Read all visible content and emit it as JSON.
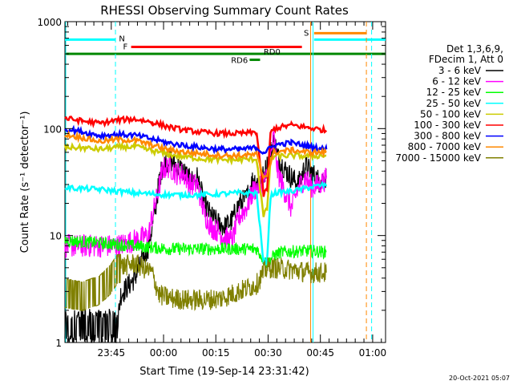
{
  "chart_data": {
    "type": "line",
    "title": "RHESSI Observing Summary Count Rates",
    "xlabel": "Start Time (19-Sep-14 23:31:42)",
    "ylabel": "Count Rate (s⁻¹ detector⁻¹)",
    "x_tick_labels": [
      "23:45",
      "00:00",
      "00:15",
      "00:30",
      "00:45",
      "01:00"
    ],
    "x_tick_minutes": [
      13.3,
      28.3,
      43.3,
      58.3,
      73.3,
      88.3
    ],
    "x_range_minutes": [
      0,
      92
    ],
    "y_scale": "log",
    "ylim": [
      1,
      1000
    ],
    "y_tick_labels": [
      "1",
      "10",
      "100",
      "1000"
    ],
    "legend_header": [
      "Det 1,3,6,9,",
      "FDecim 1, Att 0"
    ],
    "timestamp": "20-Oct-2021 05:07",
    "series": [
      {
        "name": "3 - 6 keV",
        "color": "#000000",
        "points": [
          [
            0,
            1.4
          ],
          [
            15,
            1.4
          ],
          [
            16,
            2.8
          ],
          [
            20,
            4
          ],
          [
            24,
            8
          ],
          [
            26,
            18
          ],
          [
            27,
            32
          ],
          [
            28,
            45
          ],
          [
            30,
            52
          ],
          [
            32,
            45
          ],
          [
            34,
            40
          ],
          [
            36,
            32
          ],
          [
            38,
            35
          ],
          [
            40,
            20
          ],
          [
            42,
            15
          ],
          [
            44,
            13
          ],
          [
            46,
            12
          ],
          [
            48,
            14
          ],
          [
            50,
            20
          ],
          [
            52,
            22
          ],
          [
            54,
            34
          ],
          [
            56,
            30
          ],
          [
            58,
            45
          ],
          [
            60,
            80
          ],
          [
            61,
            55
          ],
          [
            63,
            42
          ],
          [
            65,
            35
          ],
          [
            67,
            30
          ],
          [
            69,
            45
          ],
          [
            71,
            38
          ],
          [
            73,
            32
          ],
          [
            75,
            35
          ]
        ]
      },
      {
        "name": "6 - 12 keV",
        "color": "#ff00ff",
        "points": [
          [
            0,
            8
          ],
          [
            6,
            8
          ],
          [
            10,
            8
          ],
          [
            15,
            8
          ],
          [
            20,
            9
          ],
          [
            24,
            10
          ],
          [
            25,
            15
          ],
          [
            26,
            20
          ],
          [
            27,
            28
          ],
          [
            28,
            42
          ],
          [
            30,
            44
          ],
          [
            32,
            38
          ],
          [
            34,
            38
          ],
          [
            36,
            30
          ],
          [
            38,
            30
          ],
          [
            40,
            16
          ],
          [
            42,
            12
          ],
          [
            44,
            11
          ],
          [
            46,
            9.5
          ],
          [
            48,
            9
          ],
          [
            50,
            15
          ],
          [
            52,
            18
          ],
          [
            54,
            26
          ],
          [
            56,
            30
          ],
          [
            58,
            35
          ],
          [
            60,
            85
          ],
          [
            61,
            40
          ],
          [
            63,
            26
          ],
          [
            65,
            18
          ],
          [
            67,
            28
          ],
          [
            69,
            35
          ],
          [
            71,
            28
          ],
          [
            73,
            30
          ],
          [
            75,
            34
          ]
        ]
      },
      {
        "name": "12 - 25 keV",
        "color": "#00ff00",
        "points": [
          [
            0,
            9
          ],
          [
            10,
            8.5
          ],
          [
            20,
            8
          ],
          [
            30,
            7.5
          ],
          [
            40,
            7.5
          ],
          [
            50,
            7.5
          ],
          [
            55,
            7.5
          ],
          [
            57,
            6
          ],
          [
            58,
            5.5
          ],
          [
            60,
            6.5
          ],
          [
            62,
            7
          ],
          [
            70,
            7.2
          ],
          [
            75,
            7
          ]
        ]
      },
      {
        "name": "25 - 50 keV",
        "color": "#00ffff",
        "points": [
          [
            0,
            28
          ],
          [
            10,
            27
          ],
          [
            20,
            25
          ],
          [
            30,
            24
          ],
          [
            40,
            24
          ],
          [
            50,
            25
          ],
          [
            55,
            25
          ],
          [
            57,
            5.5
          ],
          [
            58,
            6
          ],
          [
            59,
            23
          ],
          [
            60,
            25
          ],
          [
            65,
            26
          ],
          [
            70,
            28
          ],
          [
            75,
            30
          ]
        ]
      },
      {
        "name": "50 - 100 keV",
        "color": "#cccc00",
        "points": [
          [
            0,
            67
          ],
          [
            5,
            66
          ],
          [
            10,
            64
          ],
          [
            15,
            67
          ],
          [
            20,
            68
          ],
          [
            25,
            62
          ],
          [
            30,
            57
          ],
          [
            35,
            54
          ],
          [
            40,
            52
          ],
          [
            45,
            51
          ],
          [
            50,
            51
          ],
          [
            55,
            52
          ],
          [
            57,
            15
          ],
          [
            58,
            18
          ],
          [
            59,
            50
          ],
          [
            60,
            55
          ],
          [
            65,
            56
          ],
          [
            70,
            55
          ],
          [
            75,
            56
          ]
        ]
      },
      {
        "name": "100 - 300 keV",
        "color": "#ff0000",
        "points": [
          [
            0,
            125
          ],
          [
            5,
            118
          ],
          [
            10,
            112
          ],
          [
            15,
            120
          ],
          [
            20,
            123
          ],
          [
            25,
            115
          ],
          [
            30,
            103
          ],
          [
            35,
            96
          ],
          [
            40,
            92
          ],
          [
            45,
            90
          ],
          [
            50,
            90
          ],
          [
            55,
            92
          ],
          [
            57,
            24
          ],
          [
            58,
            27
          ],
          [
            59,
            90
          ],
          [
            60,
            100
          ],
          [
            65,
            108
          ],
          [
            70,
            102
          ],
          [
            75,
            96
          ]
        ]
      },
      {
        "name": "300 - 800 keV",
        "color": "#0000ff",
        "points": [
          [
            0,
            100
          ],
          [
            5,
            93
          ],
          [
            10,
            86
          ],
          [
            15,
            88
          ],
          [
            20,
            87
          ],
          [
            25,
            80
          ],
          [
            30,
            73
          ],
          [
            35,
            69
          ],
          [
            40,
            66
          ],
          [
            45,
            64
          ],
          [
            50,
            64
          ],
          [
            55,
            66
          ],
          [
            57,
            60
          ],
          [
            58,
            62
          ],
          [
            60,
            70
          ],
          [
            65,
            74
          ],
          [
            70,
            68
          ],
          [
            75,
            64
          ]
        ]
      },
      {
        "name": "800 - 7000 keV",
        "color": "#ff8800",
        "points": [
          [
            0,
            88
          ],
          [
            5,
            82
          ],
          [
            10,
            76
          ],
          [
            15,
            79
          ],
          [
            20,
            78
          ],
          [
            25,
            70
          ],
          [
            30,
            63
          ],
          [
            35,
            60
          ],
          [
            40,
            58
          ],
          [
            45,
            56
          ],
          [
            50,
            56
          ],
          [
            55,
            57
          ],
          [
            57,
            35
          ],
          [
            58,
            38
          ],
          [
            60,
            60
          ],
          [
            65,
            63
          ],
          [
            70,
            60
          ],
          [
            75,
            60
          ]
        ]
      },
      {
        "name": "7000 - 15000 keV",
        "color": "#808000",
        "points": [
          [
            0,
            3
          ],
          [
            5,
            2.8
          ],
          [
            10,
            3.2
          ],
          [
            13,
            4
          ],
          [
            15,
            5
          ],
          [
            20,
            5.5
          ],
          [
            25,
            4.5
          ],
          [
            27,
            2.8
          ],
          [
            30,
            2.6
          ],
          [
            35,
            2.5
          ],
          [
            40,
            2.5
          ],
          [
            45,
            2.6
          ],
          [
            50,
            3
          ],
          [
            55,
            3.5
          ],
          [
            57,
            4.5
          ],
          [
            58,
            5
          ],
          [
            60,
            5
          ],
          [
            65,
            4.8
          ],
          [
            70,
            4.5
          ],
          [
            75,
            4.5
          ]
        ]
      }
    ],
    "annotations": [
      {
        "text": "N",
        "color": "#00ffff"
      },
      {
        "text": "F",
        "color": "#ff0000"
      },
      {
        "text": "RD0",
        "color": "#008800"
      },
      {
        "text": "RD6",
        "color": "#008800"
      },
      {
        "text": "S",
        "color": "#ff8800"
      }
    ],
    "bars": [
      {
        "label": "N",
        "color": "#00ffff",
        "level": 680,
        "segments": [
          [
            0,
            14.5
          ],
          [
            71.5,
            92
          ]
        ]
      },
      {
        "label": "F",
        "color": "#ff0000",
        "level": 580,
        "segments": [
          [
            19,
            68
          ]
        ]
      },
      {
        "label": "RD0",
        "color": "#008800",
        "level": 500,
        "segments": [
          [
            0,
            92
          ]
        ]
      },
      {
        "label": "RD6",
        "color": "#008800",
        "level": 440,
        "segments": [
          [
            53,
            56
          ]
        ]
      },
      {
        "label": "S",
        "color": "#ff8800",
        "level": 780,
        "segments": [
          [
            71.5,
            86.5
          ]
        ]
      }
    ],
    "vlines": [
      {
        "x": 14.5,
        "color": "#00ffff",
        "dash": true
      },
      {
        "x": 70.5,
        "color": "#ff8800",
        "dash": false
      },
      {
        "x": 71.2,
        "color": "#00ffff",
        "dash": false
      },
      {
        "x": 86.5,
        "color": "#ff8800",
        "dash": true
      },
      {
        "x": 88,
        "color": "#00ffff",
        "dash": true
      },
      {
        "x": 0,
        "color": "#00ffff",
        "dash": false
      }
    ]
  }
}
